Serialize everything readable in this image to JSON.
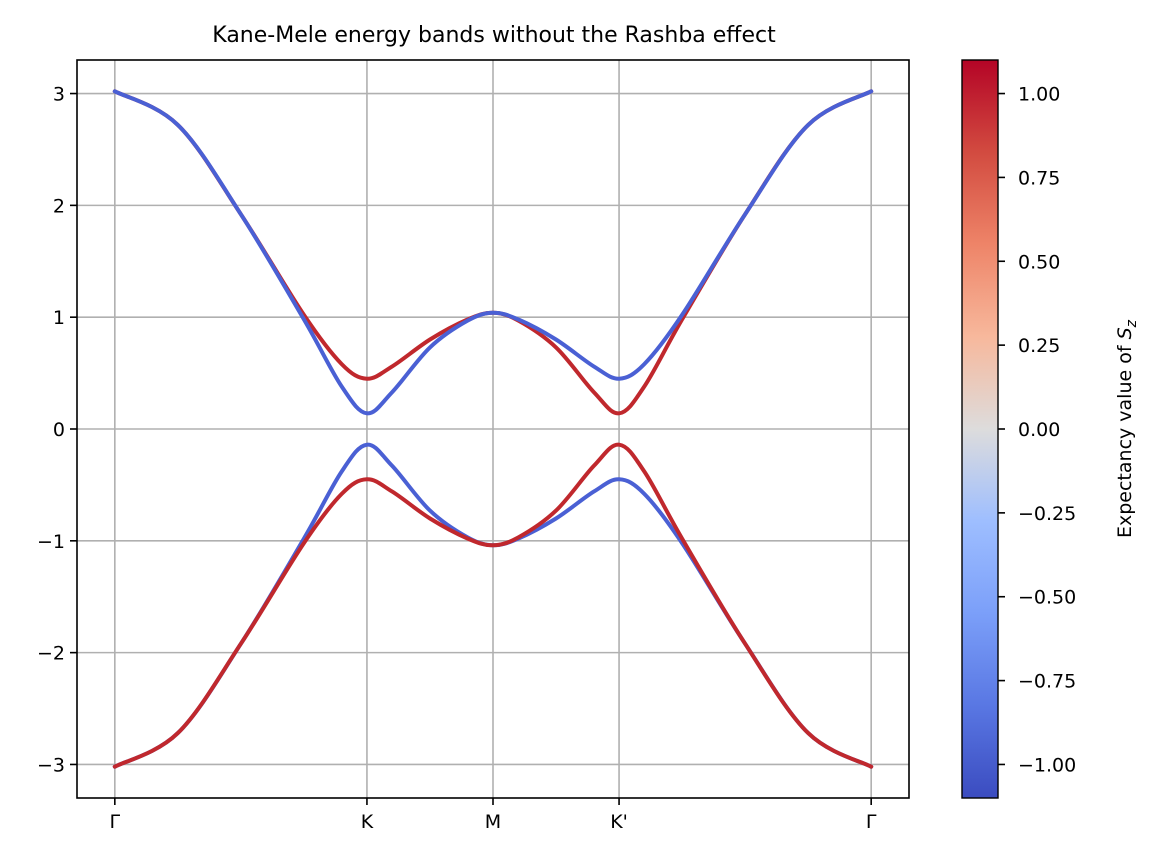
{
  "chart_data": {
    "type": "line",
    "title": "Kane-Mele energy bands without the Rashba effect",
    "xlabel": "",
    "ylabel": "",
    "x_ticks": [
      {
        "pos": 0.0,
        "label": "Γ"
      },
      {
        "pos": 1.0,
        "label": "K"
      },
      {
        "pos": 1.5,
        "label": "M"
      },
      {
        "pos": 2.0,
        "label": "K'"
      },
      {
        "pos": 3.0,
        "label": "Γ"
      }
    ],
    "xlim": [
      -0.15,
      3.15
    ],
    "ylim": [
      -3.3,
      3.3
    ],
    "y_ticks": [
      3,
      2,
      1,
      0,
      -1,
      -2,
      -3
    ],
    "y_tick_labels": [
      "3",
      "2",
      "1",
      "0",
      "−1",
      "−2",
      "−3"
    ],
    "grid": true,
    "series": [
      {
        "color": "#c0282d",
        "points": [
          [
            0,
            3.02
          ],
          [
            0.25,
            2.72
          ],
          [
            0.5,
            1.92
          ],
          [
            0.75,
            1.02
          ],
          [
            0.9,
            0.58
          ],
          [
            1.0,
            0.45
          ],
          [
            1.1,
            0.56
          ],
          [
            1.25,
            0.8
          ],
          [
            1.4,
            0.98
          ],
          [
            1.5,
            1.04
          ],
          [
            1.6,
            0.97
          ],
          [
            1.75,
            0.73
          ],
          [
            1.9,
            0.33
          ],
          [
            2.0,
            0.14
          ],
          [
            2.1,
            0.38
          ],
          [
            2.25,
            0.98
          ],
          [
            2.5,
            1.92
          ],
          [
            2.75,
            2.72
          ],
          [
            3.0,
            3.02
          ]
        ]
      },
      {
        "color": "#4a60d4",
        "points": [
          [
            0,
            3.02
          ],
          [
            0.25,
            2.72
          ],
          [
            0.5,
            1.92
          ],
          [
            0.75,
            0.98
          ],
          [
            0.9,
            0.38
          ],
          [
            1.0,
            0.14
          ],
          [
            1.1,
            0.33
          ],
          [
            1.25,
            0.73
          ],
          [
            1.4,
            0.97
          ],
          [
            1.5,
            1.04
          ],
          [
            1.6,
            0.98
          ],
          [
            1.75,
            0.8
          ],
          [
            1.9,
            0.56
          ],
          [
            2.0,
            0.45
          ],
          [
            2.1,
            0.58
          ],
          [
            2.25,
            1.02
          ],
          [
            2.5,
            1.92
          ],
          [
            2.75,
            2.72
          ],
          [
            3.0,
            3.02
          ]
        ]
      },
      {
        "color": "#4a60d4",
        "points": [
          [
            0,
            -3.02
          ],
          [
            0.25,
            -2.72
          ],
          [
            0.5,
            -1.92
          ],
          [
            0.75,
            -0.98
          ],
          [
            0.9,
            -0.38
          ],
          [
            1.0,
            -0.14
          ],
          [
            1.1,
            -0.33
          ],
          [
            1.25,
            -0.73
          ],
          [
            1.4,
            -0.97
          ],
          [
            1.5,
            -1.04
          ],
          [
            1.6,
            -0.98
          ],
          [
            1.75,
            -0.8
          ],
          [
            1.9,
            -0.56
          ],
          [
            2.0,
            -0.45
          ],
          [
            2.1,
            -0.58
          ],
          [
            2.25,
            -1.02
          ],
          [
            2.5,
            -1.92
          ],
          [
            2.75,
            -2.72
          ],
          [
            3.0,
            -3.02
          ]
        ]
      },
      {
        "color": "#c0282d",
        "points": [
          [
            0,
            -3.02
          ],
          [
            0.25,
            -2.72
          ],
          [
            0.5,
            -1.92
          ],
          [
            0.75,
            -1.02
          ],
          [
            0.9,
            -0.58
          ],
          [
            1.0,
            -0.45
          ],
          [
            1.1,
            -0.56
          ],
          [
            1.25,
            -0.8
          ],
          [
            1.4,
            -0.98
          ],
          [
            1.5,
            -1.04
          ],
          [
            1.6,
            -0.97
          ],
          [
            1.75,
            -0.73
          ],
          [
            1.9,
            -0.33
          ],
          [
            2.0,
            -0.14
          ],
          [
            2.1,
            -0.38
          ],
          [
            2.25,
            -0.98
          ],
          [
            2.5,
            -1.92
          ],
          [
            2.75,
            -2.72
          ],
          [
            3.0,
            -3.02
          ]
        ]
      }
    ],
    "colorbar": {
      "label_prefix": "Expectancy value of ",
      "label_symbol": "S",
      "label_subscript": "z",
      "range": [
        -1.1,
        1.1
      ],
      "cmap": "coolwarm",
      "ticks": [
        1.0,
        0.75,
        0.5,
        0.25,
        0.0,
        -0.25,
        -0.5,
        -0.75,
        -1.0
      ],
      "tick_labels": [
        "1.00",
        "0.75",
        "0.50",
        "0.25",
        "0.00",
        "−0.25",
        "−0.50",
        "−0.75",
        "−1.00"
      ]
    }
  }
}
